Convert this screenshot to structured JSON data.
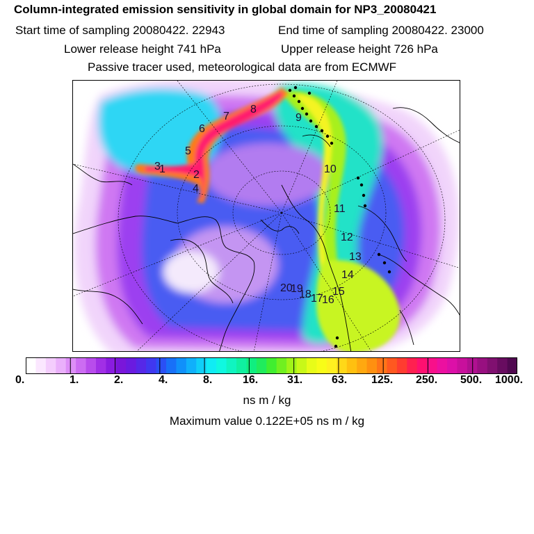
{
  "header": {
    "title": "Column-integrated emission sensitivity in global domain for NP3_20080421",
    "start_label": "Start time of sampling 20080422. 22943",
    "end_label": "End time of sampling 20080422. 23000",
    "lower_label": "Lower release height  741 hPa",
    "upper_label": "Upper release height  726 hPa",
    "info": "Passive tracer used, meteorological data are from ECMWF"
  },
  "map": {
    "point_labels": [
      "1",
      "2",
      "3",
      "4",
      "5",
      "6",
      "7",
      "8",
      "9",
      "10",
      "11",
      "12",
      "13",
      "14",
      "15",
      "16",
      "17",
      "18",
      "19",
      "20"
    ]
  },
  "colorbar": {
    "ticks": [
      "0.",
      "1.",
      "2.",
      "4.",
      "8.",
      "16.",
      "31.",
      "63.",
      "125.",
      "250.",
      "500.",
      "1000."
    ],
    "colors": [
      "#ffffff",
      "#fbe7ff",
      "#f4cdfd",
      "#eab0fb",
      "#dd8ef7",
      "#cc6cf2",
      "#b84cec",
      "#a12fe6",
      "#8a1ce0",
      "#7a16da",
      "#6a1be0",
      "#5628e8",
      "#4038f0",
      "#2a50f5",
      "#1870f8",
      "#1090fa",
      "#10b0fb",
      "#10cff8",
      "#10ecf4",
      "#10f8e0",
      "#10f4c0",
      "#10f0a0",
      "#10ee80",
      "#20ec5c",
      "#40ee30",
      "#70f020",
      "#a0f418",
      "#c8f818",
      "#e8fc18",
      "#f8fc18",
      "#fff020",
      "#ffd818",
      "#ffc010",
      "#ffa810",
      "#ff9010",
      "#ff7418",
      "#ff5820",
      "#ff3c30",
      "#ff2050",
      "#ff1070",
      "#f8108a",
      "#ec10a0",
      "#dc10a8",
      "#c8109c",
      "#b01090",
      "#981080",
      "#801070",
      "#680c60",
      "#500850"
    ],
    "units": "ns m / kg"
  },
  "max_value": "Maximum value  0.122E+05 ns m / kg"
}
